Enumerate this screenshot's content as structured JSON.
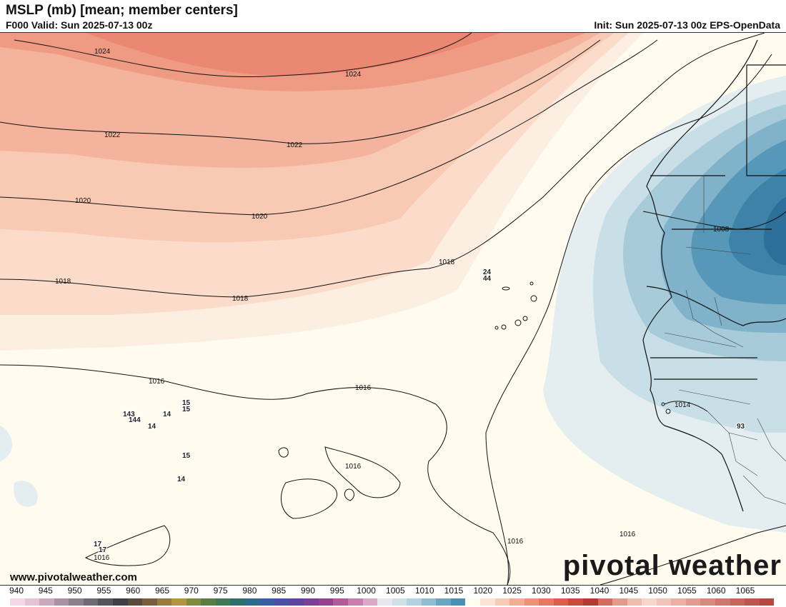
{
  "header": {
    "title": "MSLP (mb) [mean; member centers]",
    "valid": "F000 Valid: Sun 2025-07-13 00z",
    "init": "Init: Sun 2025-07-13 00z EPS-OpenData"
  },
  "contours": [
    "1024",
    "1024",
    "1022",
    "1022",
    "1020",
    "1020",
    "1018",
    "1018",
    "1018",
    "1016",
    "1016",
    "1016",
    "1016",
    "1016",
    "1016",
    "1014",
    "1008"
  ],
  "centers": {
    "h1": "24",
    "h2": "44",
    "c1": "143",
    "c2": "144",
    "c3": "14",
    "c4": "14",
    "c5": "15",
    "c6": "15",
    "c7": "15",
    "c8": "14",
    "c9": "17",
    "c10": "17",
    "c11": "93"
  },
  "footer": {
    "website": "www.pivotalweather.com",
    "brand": "pivotal weather"
  },
  "colorbar": {
    "ticks": [
      "940",
      "945",
      "950",
      "955",
      "960",
      "965",
      "970",
      "975",
      "980",
      "985",
      "990",
      "995",
      "1000",
      "1005",
      "1010",
      "1015",
      "1020",
      "1025",
      "1030",
      "1035",
      "1040",
      "1045",
      "1050",
      "1055",
      "1060",
      "1065"
    ],
    "colors": [
      "#f4d7e6",
      "#e6c2d5",
      "#c9a9bd",
      "#a892a3",
      "#8c7f8c",
      "#6e6a72",
      "#55545a",
      "#3e3e44",
      "#5a4a3a",
      "#7a5e3a",
      "#9a7a3e",
      "#b3943f",
      "#7f8a3d",
      "#5a7d42",
      "#3f7a55",
      "#2f6f6a",
      "#2c6b8a",
      "#3a5ea3",
      "#4b4fa8",
      "#5f449f",
      "#7a3f98",
      "#96418f",
      "#b25b9a",
      "#c97fae",
      "#dba9c5",
      "#e5e8ec",
      "#cfe0e8",
      "#b3d1df",
      "#8fbdd2",
      "#6aa6c3",
      "#4a8fb4",
      "#fffdf0",
      "#fde3d6",
      "#f8c9b5",
      "#f3ad94",
      "#ed9177",
      "#e77760",
      "#da5e4c",
      "#c94b3e",
      "#b33a33",
      "#d26c5e",
      "#e49a8a",
      "#efbcb0",
      "#f6d6cc",
      "#f2c3b8",
      "#eab0a4",
      "#e19c90",
      "#d8897d",
      "#cf776b",
      "#c6665b",
      "#bd574c",
      "#b4493f"
    ]
  }
}
